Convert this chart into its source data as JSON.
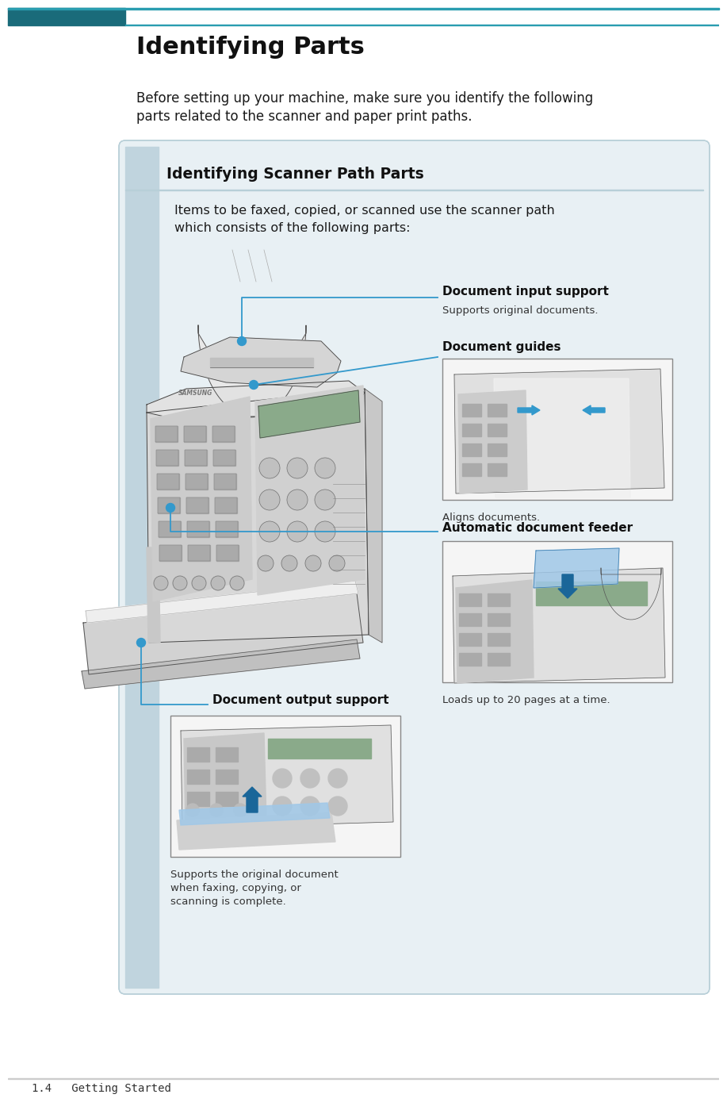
{
  "page_bg": "#ffffff",
  "teal_dark": "#1a6b7a",
  "teal_mid": "#2a9db0",
  "teal_light": "#b8cfd8",
  "box_bg": "#e8f0f4",
  "box_strip": "#c0d4de",
  "title": "Identifying Parts",
  "body1": "Before setting up your machine, make sure you identify the following",
  "body2": "parts related to the scanner and paper print paths.",
  "box_title": "Identifying Scanner Path Parts",
  "box_body1": "Items to be faxed, copied, or scanned use the scanner path",
  "box_body2": "which consists of the following parts:",
  "label1_bold": "Document input support",
  "label1_text": "Supports original documents.",
  "label2_bold": "Document guides",
  "label2_text": "Aligns documents.",
  "label3_bold": "Automatic document feeder",
  "label3_text": "Loads up to 20 pages at a time.",
  "label4_bold": "Document output support",
  "label4_text1": "Supports the original document",
  "label4_text2": "when faxing, copying, or",
  "label4_text3": "scanning is complete.",
  "footer": "1.4   Getting Started",
  "line_color": "#3399cc",
  "dot_color": "#3399cc",
  "thumb_border": "#888888",
  "thumb_bg": "#f5f5f5",
  "fig_width": 8.97,
  "fig_height": 13.64,
  "dpi": 100
}
